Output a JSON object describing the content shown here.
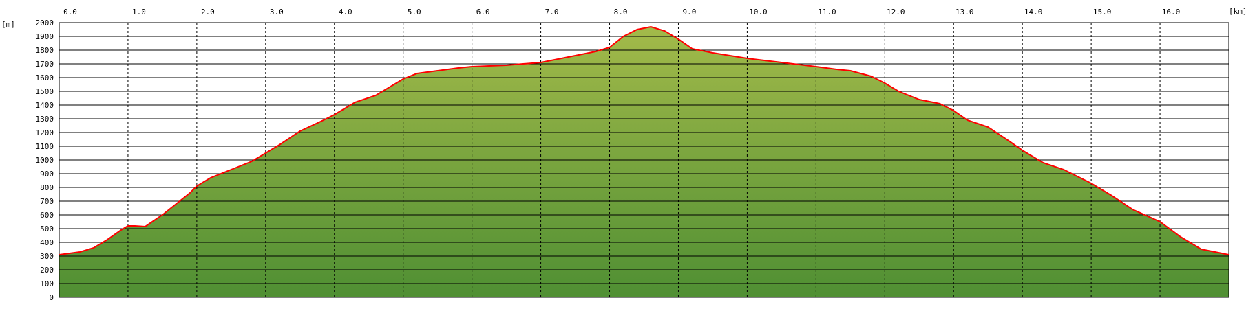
{
  "chart_data": {
    "type": "area",
    "xunit": "[km]",
    "yunit": "[m]",
    "xlim": [
      0,
      17
    ],
    "ylim": [
      0,
      2000
    ],
    "xticks": [
      "0.0",
      "1.0",
      "2.0",
      "3.0",
      "4.0",
      "5.0",
      "6.0",
      "7.0",
      "8.0",
      "9.0",
      "10.0",
      "11.0",
      "12.0",
      "13.0",
      "14.0",
      "15.0",
      "16.0"
    ],
    "yticks": [
      "0",
      "100",
      "200",
      "300",
      "400",
      "500",
      "600",
      "700",
      "800",
      "900",
      "1000",
      "1100",
      "1200",
      "1300",
      "1400",
      "1500",
      "1600",
      "1700",
      "1800",
      "1900",
      "2000"
    ],
    "grid": true,
    "colors": {
      "line": "#ff0000",
      "fill_top": "#a3ba4a",
      "fill_bottom": "#4f8f33",
      "grid_h": "#000000",
      "grid_v": "#000000"
    },
    "x": [
      0.0,
      0.3,
      0.5,
      0.7,
      0.9,
      1.0,
      1.1,
      1.25,
      1.5,
      1.7,
      1.9,
      2.0,
      2.2,
      2.5,
      2.8,
      3.0,
      3.2,
      3.5,
      3.8,
      4.0,
      4.3,
      4.6,
      4.9,
      5.0,
      5.2,
      5.5,
      5.8,
      6.0,
      6.5,
      7.0,
      7.5,
      7.8,
      8.0,
      8.2,
      8.4,
      8.6,
      8.8,
      9.0,
      9.2,
      9.5,
      10.0,
      10.5,
      11.0,
      11.3,
      11.5,
      11.8,
      12.0,
      12.2,
      12.5,
      12.8,
      13.0,
      13.2,
      13.5,
      13.8,
      14.0,
      14.3,
      14.6,
      15.0,
      15.3,
      15.6,
      16.0,
      16.3,
      16.6,
      17.0
    ],
    "y": [
      310,
      330,
      360,
      420,
      490,
      520,
      520,
      515,
      600,
      680,
      760,
      810,
      870,
      930,
      990,
      1050,
      1110,
      1210,
      1280,
      1330,
      1420,
      1470,
      1560,
      1590,
      1630,
      1650,
      1670,
      1680,
      1690,
      1710,
      1760,
      1790,
      1820,
      1900,
      1950,
      1970,
      1940,
      1880,
      1810,
      1780,
      1740,
      1710,
      1680,
      1660,
      1650,
      1610,
      1560,
      1500,
      1440,
      1410,
      1360,
      1290,
      1240,
      1140,
      1070,
      980,
      930,
      830,
      740,
      640,
      550,
      440,
      350,
      310
    ]
  }
}
